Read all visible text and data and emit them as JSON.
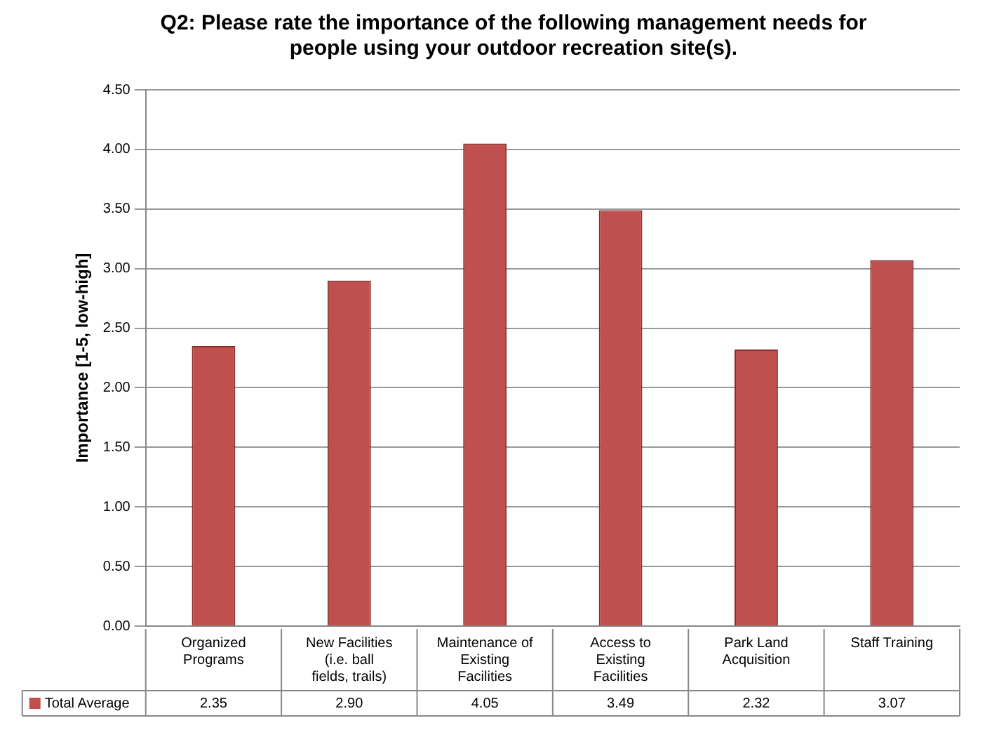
{
  "chart_data": {
    "type": "bar",
    "title": "Q2: Please rate the importance of the following management needs for people using your outdoor recreation site(s).",
    "ylabel": "Importance [1-5, low-high]",
    "categories": [
      "Organized Programs",
      "New Facilities (i.e. ball fields, trails)",
      "Maintenance of Existing Facilities",
      "Access to Existing Facilities",
      "Park Land Acquisition",
      "Staff Training"
    ],
    "series": [
      {
        "name": "Total Average",
        "color": "#c0504d",
        "values": [
          2.35,
          2.9,
          4.05,
          3.49,
          2.32,
          3.07
        ],
        "value_labels": [
          "2.35",
          "2.90",
          "4.05",
          "3.49",
          "2.32",
          "3.07"
        ]
      }
    ],
    "ylim": [
      0,
      4.5
    ],
    "yticks": [
      {
        "value": 0,
        "label": "0.00"
      },
      {
        "value": 0.5,
        "label": "0.50"
      },
      {
        "value": 1,
        "label": "1.00"
      },
      {
        "value": 1.5,
        "label": "1.50"
      },
      {
        "value": 2,
        "label": "2.00"
      },
      {
        "value": 2.5,
        "label": "2.50"
      },
      {
        "value": 3,
        "label": "3.00"
      },
      {
        "value": 3.5,
        "label": "3.50"
      },
      {
        "value": 4,
        "label": "4.00"
      },
      {
        "value": 4.5,
        "label": "4.50"
      }
    ],
    "grid": "y",
    "legend": "bottom"
  }
}
